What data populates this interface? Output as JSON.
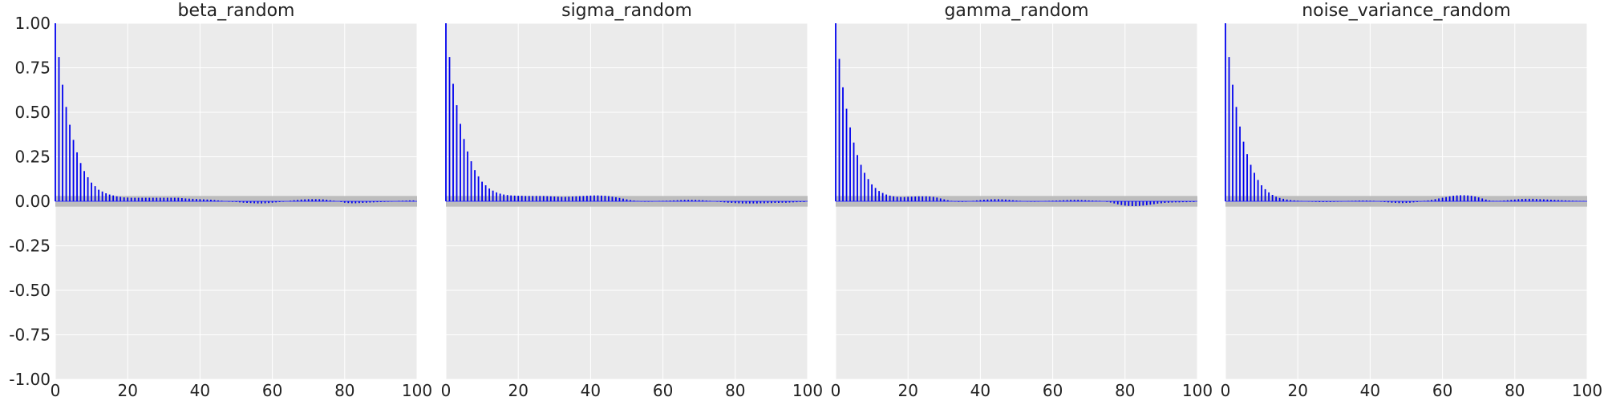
{
  "chart_data": [
    {
      "type": "bar",
      "title": "beta_random",
      "xlim": [
        0,
        100
      ],
      "ylim": [
        -1,
        1
      ],
      "xticks": [
        "0",
        "20",
        "40",
        "60",
        "80",
        "100"
      ],
      "yticks": [
        "1.00",
        "0.75",
        "0.50",
        "0.25",
        "0.00",
        "-0.25",
        "-0.50",
        "-0.75",
        "-1.00"
      ],
      "grid": true,
      "lags": [
        0,
        1,
        2,
        3,
        4,
        5,
        6,
        7,
        8,
        9,
        10,
        11,
        12,
        13,
        14,
        15,
        16,
        17,
        18,
        19,
        20,
        21,
        22,
        23,
        24,
        25,
        26,
        27,
        28,
        29,
        30,
        31,
        32,
        33,
        34,
        35,
        36,
        37,
        38,
        39,
        40,
        41,
        42,
        43,
        44,
        45,
        46,
        47,
        48,
        49,
        50,
        51,
        52,
        53,
        54,
        55,
        56,
        57,
        58,
        59,
        60,
        61,
        62,
        63,
        64,
        65,
        66,
        67,
        68,
        69,
        70,
        71,
        72,
        73,
        74,
        75,
        76,
        77,
        78,
        79,
        80,
        81,
        82,
        83,
        84,
        85,
        86,
        87,
        88,
        89,
        90,
        91,
        92,
        93,
        94,
        95,
        96,
        97,
        98,
        99
      ],
      "values": [
        1.0,
        0.81,
        0.655,
        0.53,
        0.43,
        0.345,
        0.275,
        0.215,
        0.17,
        0.135,
        0.105,
        0.085,
        0.065,
        0.055,
        0.045,
        0.038,
        0.033,
        0.028,
        0.025,
        0.022,
        0.021,
        0.02,
        0.02,
        0.02,
        0.02,
        0.02,
        0.02,
        0.02,
        0.02,
        0.02,
        0.02,
        0.02,
        0.02,
        0.02,
        0.02,
        0.018,
        0.016,
        0.015,
        0.014,
        0.013,
        0.012,
        0.011,
        0.01,
        0.009,
        0.007,
        0.005,
        0.003,
        0.0,
        -0.002,
        -0.003,
        -0.004,
        -0.006,
        -0.008,
        -0.009,
        -0.01,
        -0.011,
        -0.012,
        -0.012,
        -0.011,
        -0.01,
        -0.008,
        -0.006,
        -0.004,
        -0.002,
        0.0,
        0.003,
        0.006,
        0.008,
        0.01,
        0.011,
        0.012,
        0.012,
        0.012,
        0.012,
        0.011,
        0.009,
        0.006,
        0.003,
        0.0,
        -0.004,
        -0.008,
        -0.01,
        -0.011,
        -0.011,
        -0.01,
        -0.009,
        -0.008,
        -0.007,
        -0.006,
        -0.005,
        -0.004,
        -0.003,
        -0.002,
        -0.001,
        0.0,
        0.002,
        0.003,
        0.004,
        0.005,
        0.005
      ]
    },
    {
      "type": "bar",
      "title": "sigma_random",
      "xlim": [
        0,
        100
      ],
      "ylim": [
        -1,
        1
      ],
      "xticks": [
        "0",
        "20",
        "40",
        "60",
        "80",
        "100"
      ],
      "yticks": [],
      "grid": true,
      "lags": [
        0,
        1,
        2,
        3,
        4,
        5,
        6,
        7,
        8,
        9,
        10,
        11,
        12,
        13,
        14,
        15,
        16,
        17,
        18,
        19,
        20,
        21,
        22,
        23,
        24,
        25,
        26,
        27,
        28,
        29,
        30,
        31,
        32,
        33,
        34,
        35,
        36,
        37,
        38,
        39,
        40,
        41,
        42,
        43,
        44,
        45,
        46,
        47,
        48,
        49,
        50,
        51,
        52,
        53,
        54,
        55,
        56,
        57,
        58,
        59,
        60,
        61,
        62,
        63,
        64,
        65,
        66,
        67,
        68,
        69,
        70,
        71,
        72,
        73,
        74,
        75,
        76,
        77,
        78,
        79,
        80,
        81,
        82,
        83,
        84,
        85,
        86,
        87,
        88,
        89,
        90,
        91,
        92,
        93,
        94,
        95,
        96,
        97,
        98,
        99
      ],
      "values": [
        1.0,
        0.81,
        0.66,
        0.54,
        0.435,
        0.35,
        0.28,
        0.225,
        0.175,
        0.14,
        0.11,
        0.09,
        0.072,
        0.06,
        0.05,
        0.043,
        0.038,
        0.035,
        0.033,
        0.032,
        0.031,
        0.031,
        0.03,
        0.03,
        0.03,
        0.03,
        0.03,
        0.03,
        0.029,
        0.028,
        0.027,
        0.026,
        0.025,
        0.025,
        0.026,
        0.027,
        0.028,
        0.029,
        0.03,
        0.031,
        0.032,
        0.033,
        0.033,
        0.032,
        0.031,
        0.029,
        0.026,
        0.023,
        0.019,
        0.015,
        0.011,
        0.007,
        0.004,
        0.001,
        -0.001,
        -0.002,
        -0.002,
        -0.001,
        0.0,
        0.001,
        0.002,
        0.003,
        0.004,
        0.005,
        0.006,
        0.007,
        0.008,
        0.008,
        0.008,
        0.008,
        0.007,
        0.006,
        0.004,
        0.002,
        0.0,
        -0.002,
        -0.004,
        -0.006,
        -0.008,
        -0.009,
        -0.01,
        -0.011,
        -0.012,
        -0.012,
        -0.012,
        -0.012,
        -0.012,
        -0.011,
        -0.011,
        -0.01,
        -0.01,
        -0.009,
        -0.009,
        -0.008,
        -0.008,
        -0.007,
        -0.006,
        -0.005,
        -0.004,
        -0.004
      ]
    },
    {
      "type": "bar",
      "title": "gamma_random",
      "xlim": [
        0,
        100
      ],
      "ylim": [
        -1,
        1
      ],
      "xticks": [
        "0",
        "20",
        "40",
        "60",
        "80",
        "100"
      ],
      "yticks": [],
      "grid": true,
      "lags": [
        0,
        1,
        2,
        3,
        4,
        5,
        6,
        7,
        8,
        9,
        10,
        11,
        12,
        13,
        14,
        15,
        16,
        17,
        18,
        19,
        20,
        21,
        22,
        23,
        24,
        25,
        26,
        27,
        28,
        29,
        30,
        31,
        32,
        33,
        34,
        35,
        36,
        37,
        38,
        39,
        40,
        41,
        42,
        43,
        44,
        45,
        46,
        47,
        48,
        49,
        50,
        51,
        52,
        53,
        54,
        55,
        56,
        57,
        58,
        59,
        60,
        61,
        62,
        63,
        64,
        65,
        66,
        67,
        68,
        69,
        70,
        71,
        72,
        73,
        74,
        75,
        76,
        77,
        78,
        79,
        80,
        81,
        82,
        83,
        84,
        85,
        86,
        87,
        88,
        89,
        90,
        91,
        92,
        93,
        94,
        95,
        96,
        97,
        98,
        99
      ],
      "values": [
        1.0,
        0.8,
        0.64,
        0.52,
        0.415,
        0.33,
        0.26,
        0.205,
        0.16,
        0.125,
        0.095,
        0.075,
        0.058,
        0.047,
        0.038,
        0.032,
        0.028,
        0.025,
        0.024,
        0.024,
        0.025,
        0.026,
        0.027,
        0.028,
        0.028,
        0.028,
        0.027,
        0.025,
        0.021,
        0.016,
        0.011,
        0.006,
        0.002,
        -0.001,
        -0.003,
        -0.003,
        -0.002,
        0.0,
        0.002,
        0.005,
        0.007,
        0.009,
        0.01,
        0.011,
        0.012,
        0.012,
        0.011,
        0.01,
        0.008,
        0.006,
        0.004,
        0.002,
        0.0,
        -0.001,
        -0.002,
        -0.002,
        -0.001,
        0.0,
        0.001,
        0.002,
        0.003,
        0.004,
        0.005,
        0.006,
        0.007,
        0.008,
        0.008,
        0.008,
        0.007,
        0.006,
        0.005,
        0.004,
        0.003,
        0.002,
        0.0,
        -0.003,
        -0.007,
        -0.012,
        -0.017,
        -0.021,
        -0.024,
        -0.026,
        -0.027,
        -0.027,
        -0.026,
        -0.024,
        -0.022,
        -0.019,
        -0.016,
        -0.013,
        -0.011,
        -0.009,
        -0.008,
        -0.007,
        -0.006,
        -0.006,
        -0.005,
        -0.005,
        -0.004,
        -0.004
      ]
    },
    {
      "type": "bar",
      "title": "noise_variance_random",
      "xlim": [
        0,
        100
      ],
      "ylim": [
        -1,
        1
      ],
      "xticks": [
        "0",
        "20",
        "40",
        "60",
        "80",
        "100"
      ],
      "yticks": [],
      "grid": true,
      "lags": [
        0,
        1,
        2,
        3,
        4,
        5,
        6,
        7,
        8,
        9,
        10,
        11,
        12,
        13,
        14,
        15,
        16,
        17,
        18,
        19,
        20,
        21,
        22,
        23,
        24,
        25,
        26,
        27,
        28,
        29,
        30,
        31,
        32,
        33,
        34,
        35,
        36,
        37,
        38,
        39,
        40,
        41,
        42,
        43,
        44,
        45,
        46,
        47,
        48,
        49,
        50,
        51,
        52,
        53,
        54,
        55,
        56,
        57,
        58,
        59,
        60,
        61,
        62,
        63,
        64,
        65,
        66,
        67,
        68,
        69,
        70,
        71,
        72,
        73,
        74,
        75,
        76,
        77,
        78,
        79,
        80,
        81,
        82,
        83,
        84,
        85,
        86,
        87,
        88,
        89,
        90,
        91,
        92,
        93,
        94,
        95,
        96,
        97,
        98,
        99
      ],
      "values": [
        1.0,
        0.81,
        0.655,
        0.53,
        0.42,
        0.335,
        0.265,
        0.205,
        0.16,
        0.12,
        0.09,
        0.068,
        0.05,
        0.036,
        0.026,
        0.019,
        0.014,
        0.01,
        0.007,
        0.005,
        0.003,
        0.001,
        0.0,
        -0.001,
        -0.002,
        -0.003,
        -0.004,
        -0.004,
        -0.004,
        -0.004,
        -0.003,
        -0.002,
        -0.001,
        0.0,
        0.001,
        0.002,
        0.003,
        0.004,
        0.004,
        0.004,
        0.003,
        0.002,
        0.0,
        -0.002,
        -0.004,
        -0.006,
        -0.008,
        -0.009,
        -0.01,
        -0.01,
        -0.009,
        -0.008,
        -0.006,
        -0.004,
        -0.001,
        0.002,
        0.005,
        0.008,
        0.012,
        0.016,
        0.02,
        0.024,
        0.028,
        0.031,
        0.033,
        0.034,
        0.034,
        0.033,
        0.031,
        0.027,
        0.022,
        0.016,
        0.01,
        0.005,
        0.002,
        0.001,
        0.002,
        0.004,
        0.006,
        0.008,
        0.01,
        0.012,
        0.013,
        0.014,
        0.014,
        0.014,
        0.013,
        0.012,
        0.011,
        0.01,
        0.009,
        0.008,
        0.007,
        0.006,
        0.005,
        0.004,
        0.003,
        0.002,
        0.001,
        0.001
      ]
    }
  ],
  "colors": {
    "bar": "#0000ee",
    "zero_line": "#6666ee",
    "band": "#bdbdbd",
    "plot_bg": "#ebebeb",
    "grid": "#ffffff"
  }
}
